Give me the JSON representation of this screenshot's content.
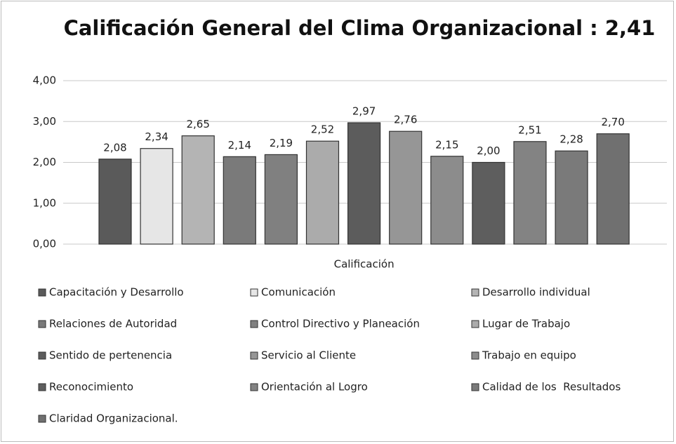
{
  "chart_data": {
    "type": "bar",
    "title": "Calificación General del Clima Organizacional : 2,41",
    "categories": [
      "Calificación"
    ],
    "series": [
      {
        "name": "Capacitación y Desarrollo",
        "color": "#5a5a5a",
        "values": [
          2.08
        ],
        "value_labels": [
          "2,08"
        ]
      },
      {
        "name": "Comunicación",
        "color": "#e6e6e6",
        "values": [
          2.34
        ],
        "value_labels": [
          "2,34"
        ]
      },
      {
        "name": "Desarrollo individual",
        "color": "#b4b4b4",
        "values": [
          2.65
        ],
        "value_labels": [
          "2,65"
        ]
      },
      {
        "name": "Relaciones de Autoridad",
        "color": "#7a7a7a",
        "values": [
          2.14
        ],
        "value_labels": [
          "2,14"
        ]
      },
      {
        "name": "Control Directivo y Planeación",
        "color": "#808080",
        "values": [
          2.19
        ],
        "value_labels": [
          "2,19"
        ]
      },
      {
        "name": "Lugar de Trabajo",
        "color": "#ababab",
        "values": [
          2.52
        ],
        "value_labels": [
          "2,52"
        ]
      },
      {
        "name": "Sentido de pertenencia",
        "color": "#5c5c5c",
        "values": [
          2.97
        ],
        "value_labels": [
          "2,97"
        ]
      },
      {
        "name": "Servicio al Cliente",
        "color": "#969696",
        "values": [
          2.76
        ],
        "value_labels": [
          "2,76"
        ]
      },
      {
        "name": "Trabajo en equipo",
        "color": "#8c8c8c",
        "values": [
          2.15
        ],
        "value_labels": [
          "2,15"
        ]
      },
      {
        "name": "Reconocimiento",
        "color": "#5e5e5e",
        "values": [
          2.0
        ],
        "value_labels": [
          "2,00"
        ]
      },
      {
        "name": "Orientación al Logro",
        "color": "#838383",
        "values": [
          2.51
        ],
        "value_labels": [
          "2,51"
        ]
      },
      {
        "name": "Calidad de los  Resultados",
        "color": "#7a7a7a",
        "values": [
          2.28
        ],
        "value_labels": [
          "2,28"
        ]
      },
      {
        "name": "Claridad Organizacional.",
        "color": "#707070",
        "values": [
          2.7
        ],
        "value_labels": [
          "2,70"
        ]
      }
    ],
    "ylim": [
      0,
      4
    ],
    "yticks": [
      {
        "value": 0,
        "label": "0,00"
      },
      {
        "value": 1,
        "label": "1,00"
      },
      {
        "value": 2,
        "label": "2,00"
      },
      {
        "value": 3,
        "label": "3,00"
      },
      {
        "value": 4,
        "label": "4,00"
      }
    ],
    "grid": true,
    "legend": "bottom"
  }
}
